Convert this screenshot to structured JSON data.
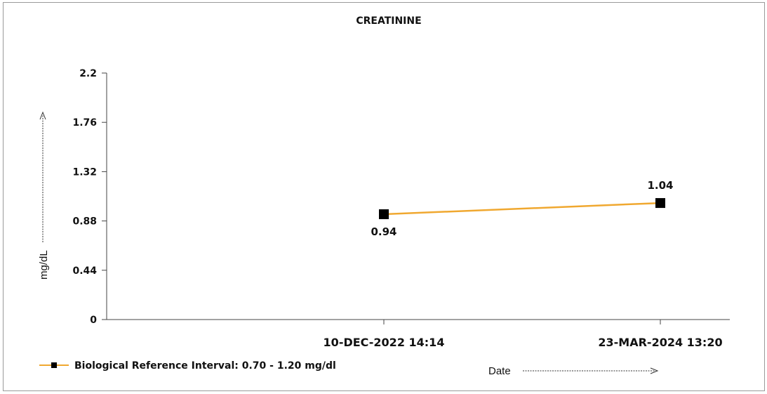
{
  "chart_data": {
    "type": "line",
    "title": "CREATININE",
    "xlabel": "Date",
    "ylabel": "mg/dL",
    "categories": [
      "10-DEC-2022 14:14",
      "23-MAR-2024 13:20"
    ],
    "yticks": [
      "0",
      "0.44",
      "0.88",
      "1.32",
      "1.76",
      "2.2"
    ],
    "ylim": [
      0,
      2.2
    ],
    "series": [
      {
        "name": "Biological Reference Interval: 0.70 - 1.20 mg/dl",
        "values": [
          0.94,
          1.04
        ],
        "labels": [
          "0.94",
          "1.04"
        ],
        "label_position": [
          "below",
          "above"
        ],
        "color": "#f0a830",
        "marker_color": "#000000"
      }
    ],
    "legend_position": "bottom-left",
    "grid": false
  }
}
